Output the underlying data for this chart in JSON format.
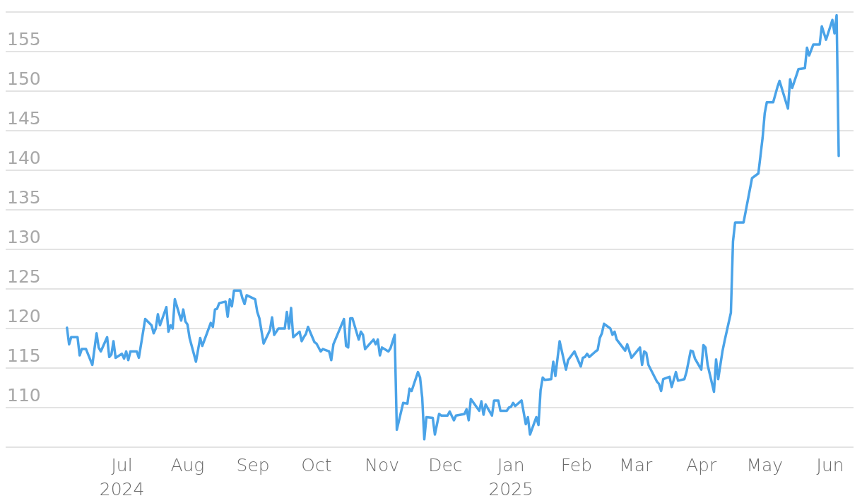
{
  "chart_data": {
    "type": "line",
    "x": [
      "2024-06-05",
      "2024-06-06",
      "2024-06-07",
      "2024-06-10",
      "2024-06-11",
      "2024-06-12",
      "2024-06-14",
      "2024-06-17",
      "2024-06-19",
      "2024-06-20",
      "2024-06-21",
      "2024-06-24",
      "2024-06-25",
      "2024-06-26",
      "2024-06-27",
      "2024-06-28",
      "2024-07-01",
      "2024-07-02",
      "2024-07-03",
      "2024-07-04",
      "2024-07-05",
      "2024-07-08",
      "2024-07-09",
      "2024-07-12",
      "2024-07-15",
      "2024-07-16",
      "2024-07-17",
      "2024-07-18",
      "2024-07-19",
      "2024-07-22",
      "2024-07-23",
      "2024-07-24",
      "2024-07-25",
      "2024-07-26",
      "2024-07-29",
      "2024-07-30",
      "2024-07-31",
      "2024-08-01",
      "2024-08-02",
      "2024-08-05",
      "2024-08-07",
      "2024-08-08",
      "2024-08-12",
      "2024-08-13",
      "2024-08-14",
      "2024-08-15",
      "2024-08-16",
      "2024-08-19",
      "2024-08-20",
      "2024-08-21",
      "2024-08-22",
      "2024-08-23",
      "2024-08-26",
      "2024-08-27",
      "2024-08-28",
      "2024-08-29",
      "2024-09-02",
      "2024-09-03",
      "2024-09-04",
      "2024-09-06",
      "2024-09-09",
      "2024-09-10",
      "2024-09-11",
      "2024-09-13",
      "2024-09-16",
      "2024-09-17",
      "2024-09-18",
      "2024-09-19",
      "2024-09-20",
      "2024-09-23",
      "2024-09-24",
      "2024-09-25",
      "2024-09-26",
      "2024-09-27",
      "2024-09-30",
      "2024-10-01",
      "2024-10-03",
      "2024-10-04",
      "2024-10-07",
      "2024-10-08",
      "2024-10-09",
      "2024-10-14",
      "2024-10-15",
      "2024-10-16",
      "2024-10-17",
      "2024-10-18",
      "2024-10-21",
      "2024-10-22",
      "2024-10-23",
      "2024-10-24",
      "2024-10-28",
      "2024-10-29",
      "2024-10-30",
      "2024-10-31",
      "2024-11-01",
      "2024-11-04",
      "2024-11-05",
      "2024-11-07",
      "2024-11-08",
      "2024-11-11",
      "2024-11-13",
      "2024-11-14",
      "2024-11-15",
      "2024-11-18",
      "2024-11-19",
      "2024-11-20",
      "2024-11-21",
      "2024-11-22",
      "2024-11-25",
      "2024-11-26",
      "2024-11-28",
      "2024-11-29",
      "2024-12-02",
      "2024-12-03",
      "2024-12-05",
      "2024-12-06",
      "2024-12-10",
      "2024-12-11",
      "2024-12-12",
      "2024-12-13",
      "2024-12-17",
      "2024-12-18",
      "2024-12-19",
      "2024-12-20",
      "2024-12-23",
      "2024-12-24",
      "2024-12-26",
      "2024-12-27",
      "2024-12-30",
      "2024-12-31",
      "2025-01-01",
      "2025-01-02",
      "2025-01-03",
      "2025-01-06",
      "2025-01-08",
      "2025-01-09",
      "2025-01-10",
      "2025-01-13",
      "2025-01-14",
      "2025-01-15",
      "2025-01-16",
      "2025-01-17",
      "2025-01-20",
      "2025-01-21",
      "2025-01-22",
      "2025-01-24",
      "2025-01-27",
      "2025-01-28",
      "2025-01-31",
      "2025-02-03",
      "2025-02-04",
      "2025-02-05",
      "2025-02-06",
      "2025-02-07",
      "2025-02-10",
      "2025-02-11",
      "2025-02-12",
      "2025-02-13",
      "2025-02-14",
      "2025-02-17",
      "2025-02-18",
      "2025-02-19",
      "2025-02-20",
      "2025-02-24",
      "2025-02-25",
      "2025-02-27",
      "2025-03-03",
      "2025-03-04",
      "2025-03-05",
      "2025-03-06",
      "2025-03-07",
      "2025-03-11",
      "2025-03-12",
      "2025-03-13",
      "2025-03-14",
      "2025-03-17",
      "2025-03-18",
      "2025-03-20",
      "2025-03-21",
      "2025-03-24",
      "2025-03-25",
      "2025-03-27",
      "2025-03-28",
      "2025-03-29",
      "2025-04-01",
      "2025-04-02",
      "2025-04-03",
      "2025-04-04",
      "2025-04-07",
      "2025-04-08",
      "2025-04-09",
      "2025-04-11",
      "2025-04-12",
      "2025-04-15",
      "2025-04-16",
      "2025-04-17",
      "2025-04-21",
      "2025-04-25",
      "2025-04-28",
      "2025-04-30",
      "2025-05-01",
      "2025-05-02",
      "2025-05-05",
      "2025-05-07",
      "2025-05-08",
      "2025-05-12",
      "2025-05-13",
      "2025-05-14",
      "2025-05-17",
      "2025-05-20",
      "2025-05-21",
      "2025-05-22",
      "2025-05-24",
      "2025-05-27",
      "2025-05-28",
      "2025-05-30",
      "2025-06-02",
      "2025-06-03",
      "2025-06-04",
      "2025-06-05"
    ],
    "series": [
      {
        "color": "#4aa3e8",
        "values": [
          120.1,
          118.0,
          118.9,
          118.9,
          116.6,
          117.4,
          117.4,
          115.4,
          119.4,
          117.6,
          117.1,
          118.9,
          116.4,
          116.7,
          118.4,
          116.3,
          116.8,
          116.2,
          117.1,
          116.0,
          117.1,
          117.1,
          116.3,
          121.2,
          120.4,
          119.4,
          120.0,
          121.8,
          120.4,
          122.7,
          119.6,
          120.4,
          120.0,
          123.7,
          121.0,
          122.4,
          120.9,
          120.5,
          118.8,
          115.8,
          118.8,
          117.8,
          120.7,
          120.2,
          122.4,
          122.5,
          123.2,
          123.4,
          121.5,
          123.7,
          122.8,
          124.8,
          124.8,
          123.8,
          123.1,
          124.2,
          123.7,
          122.1,
          121.3,
          118.1,
          119.8,
          121.4,
          119.2,
          120.0,
          120.0,
          122.1,
          120.0,
          122.6,
          118.9,
          119.6,
          118.4,
          118.9,
          119.3,
          120.2,
          118.3,
          118.1,
          117.1,
          117.4,
          117.1,
          116.0,
          118.0,
          121.2,
          117.8,
          117.6,
          121.3,
          121.3,
          118.6,
          119.6,
          119.2,
          117.4,
          118.6,
          118.0,
          118.6,
          116.6,
          117.6,
          117.1,
          117.5,
          119.2,
          107.2,
          110.6,
          110.5,
          112.4,
          112.1,
          114.5,
          113.8,
          111.3,
          106.0,
          108.8,
          108.7,
          106.6,
          109.2,
          109.0,
          109.0,
          109.5,
          108.4,
          109.0,
          109.2,
          109.8,
          108.4,
          111.1,
          109.6,
          110.8,
          109.1,
          110.4,
          109.0,
          110.9,
          110.9,
          109.6,
          109.6,
          110.0,
          110.1,
          110.6,
          110.2,
          110.9,
          107.9,
          108.8,
          106.6,
          108.8,
          107.8,
          112.2,
          113.8,
          113.5,
          113.6,
          115.8,
          114.0,
          118.4,
          114.8,
          116.0,
          117.1,
          115.2,
          116.3,
          116.4,
          116.8,
          116.4,
          117.1,
          117.3,
          118.8,
          119.4,
          120.6,
          120.0,
          119.2,
          119.6,
          118.6,
          117.2,
          118.0,
          116.3,
          117.6,
          115.4,
          117.1,
          116.9,
          115.4,
          113.3,
          113.0,
          112.1,
          113.6,
          113.9,
          112.6,
          114.5,
          113.4,
          113.6,
          114.5,
          117.2,
          117.1,
          116.2,
          114.8,
          117.9,
          117.6,
          115.4,
          112.0,
          116.1,
          113.6,
          117.1,
          118.4,
          122.0,
          131.0,
          133.4,
          133.4,
          139.0,
          139.6,
          144.1,
          147.2,
          148.6,
          148.6,
          150.5,
          151.3,
          147.8,
          151.5,
          150.4,
          152.8,
          152.9,
          155.5,
          154.5,
          155.9,
          155.9,
          158.2,
          156.5,
          159.0,
          157.3,
          159.6,
          141.8
        ]
      }
    ],
    "xlim": [
      "2024-05-07",
      "2025-06-12"
    ],
    "xticks": [
      {
        "value": "2024-07-01",
        "label": "Jul\n2024"
      },
      {
        "value": "2024-08-01",
        "label": "Aug"
      },
      {
        "value": "2024-09-01",
        "label": "Sep"
      },
      {
        "value": "2024-10-01",
        "label": "Oct"
      },
      {
        "value": "2024-11-01",
        "label": "Nov"
      },
      {
        "value": "2024-12-01",
        "label": "Dec"
      },
      {
        "value": "2025-01-01",
        "label": "Jan\n2025"
      },
      {
        "value": "2025-02-01",
        "label": "Feb"
      },
      {
        "value": "2025-03-01",
        "label": "Mar"
      },
      {
        "value": "2025-04-01",
        "label": "Apr"
      },
      {
        "value": "2025-05-01",
        "label": "May"
      },
      {
        "value": "2025-06-01",
        "label": "Jun"
      }
    ],
    "ylim": [
      105,
      160
    ],
    "yticks": [
      110,
      115,
      120,
      125,
      130,
      135,
      140,
      145,
      150,
      155
    ],
    "grid": "y",
    "marker": "none",
    "line_style": "solid"
  }
}
